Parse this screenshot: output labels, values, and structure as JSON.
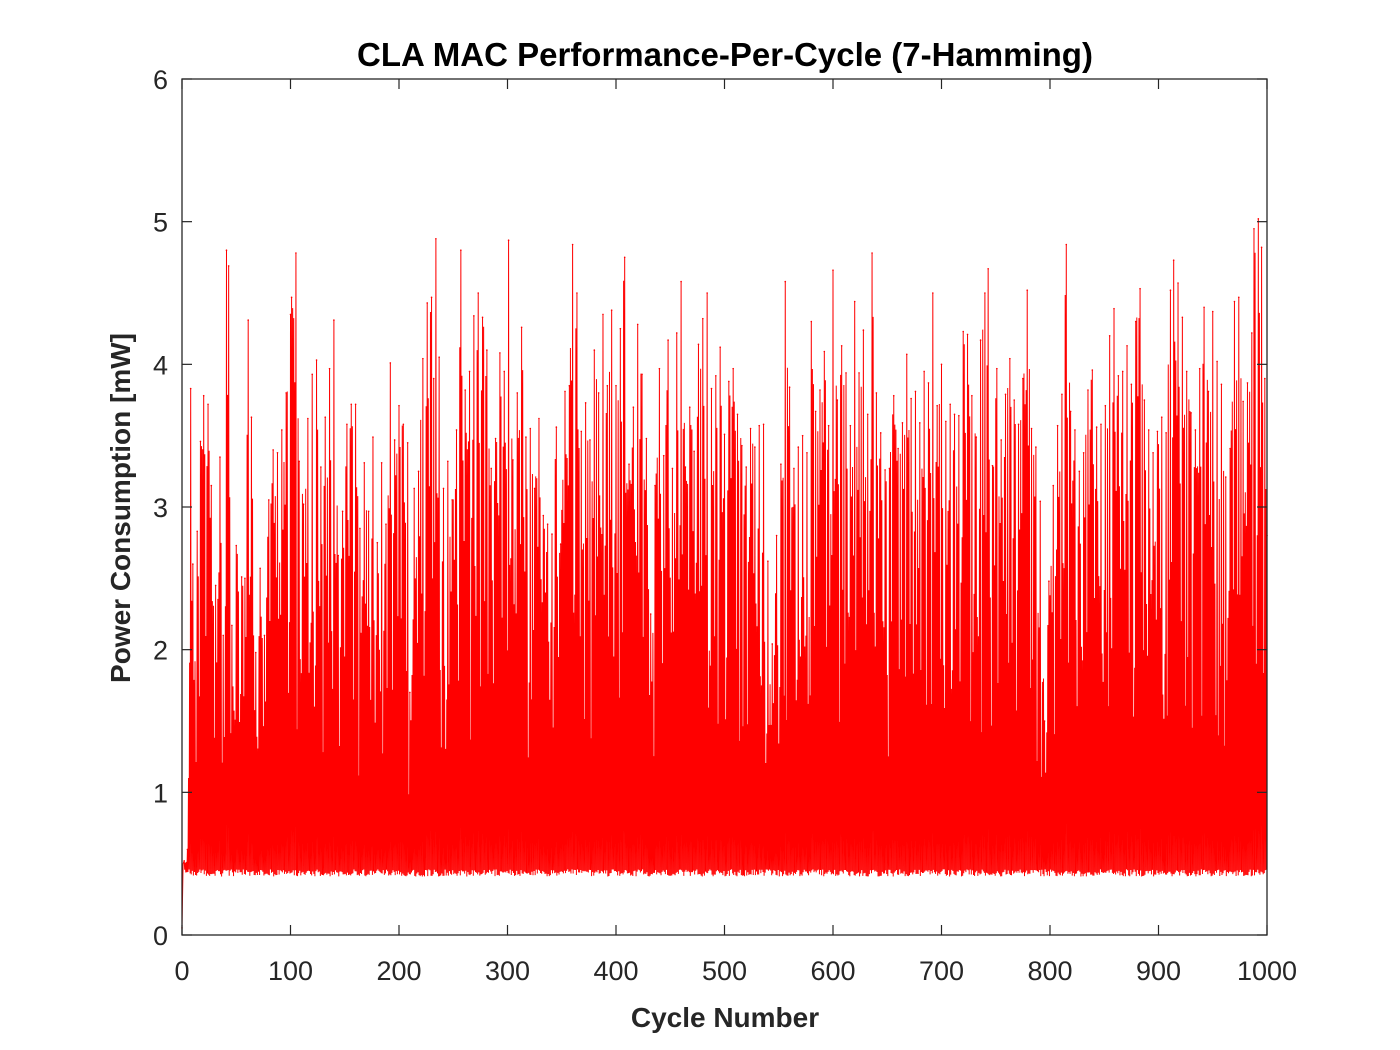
{
  "chart_data": {
    "type": "line",
    "title": "CLA MAC Performance-Per-Cycle (7-Hamming)",
    "xlabel": "Cycle Number",
    "ylabel": "Power Consumption [mW]",
    "xlim": [
      0,
      1000
    ],
    "ylim": [
      0,
      6
    ],
    "xticks": [
      "0",
      "100",
      "200",
      "300",
      "400",
      "500",
      "600",
      "700",
      "800",
      "900",
      "1000"
    ],
    "yticks": [
      "0",
      "1",
      "2",
      "3",
      "4",
      "5",
      "6"
    ],
    "grid": false,
    "legend": "none",
    "series": [
      {
        "color": "#ff0000",
        "description_values": {
          "baseline": 0.41,
          "start_value": 0.05,
          "typical_peak_range": [
            2.0,
            4.9
          ],
          "max_peak": 5.02,
          "max_peak_cycle": 992
        },
        "peaks": [
          [
            0,
            0.05
          ],
          [
            2,
            0.52
          ],
          [
            5,
            0.6
          ],
          [
            8,
            3.83
          ],
          [
            10,
            2.6
          ],
          [
            14,
            2.83
          ],
          [
            17,
            3.46
          ],
          [
            20,
            3.78
          ],
          [
            24,
            3.72
          ],
          [
            27,
            3.15
          ],
          [
            31,
            2.45
          ],
          [
            35,
            3.35
          ],
          [
            38,
            2.1
          ],
          [
            41,
            4.8
          ],
          [
            43,
            4.69
          ],
          [
            46,
            2.17
          ],
          [
            50,
            2.73
          ],
          [
            55,
            2.51
          ],
          [
            58,
            2.5
          ],
          [
            61,
            4.31
          ],
          [
            64,
            3.63
          ],
          [
            68,
            1.98
          ],
          [
            72,
            2.57
          ],
          [
            76,
            2.1
          ],
          [
            80,
            3.05
          ],
          [
            84,
            3.4
          ],
          [
            88,
            3.38
          ],
          [
            92,
            3.54
          ],
          [
            96,
            3.8
          ],
          [
            100,
            4.35
          ],
          [
            101,
            4.47
          ],
          [
            105,
            4.78
          ],
          [
            108,
            3.32
          ],
          [
            112,
            3.02
          ],
          [
            116,
            3.62
          ],
          [
            120,
            3.93
          ],
          [
            124,
            4.03
          ],
          [
            128,
            3.28
          ],
          [
            132,
            3.63
          ],
          [
            136,
            3.97
          ],
          [
            140,
            4.31
          ],
          [
            144,
            2.66
          ],
          [
            148,
            2.97
          ],
          [
            152,
            3.58
          ],
          [
            156,
            3.72
          ],
          [
            160,
            3.72
          ],
          [
            164,
            2.85
          ],
          [
            168,
            3.31
          ],
          [
            172,
            2.97
          ],
          [
            176,
            3.49
          ],
          [
            180,
            2.75
          ],
          [
            184,
            3.31
          ],
          [
            188,
            2.88
          ],
          [
            192,
            4.01
          ],
          [
            196,
            3.47
          ],
          [
            200,
            3.71
          ],
          [
            204,
            3.58
          ],
          [
            208,
            3.45
          ],
          [
            210,
            1.7
          ],
          [
            214,
            3.13
          ],
          [
            218,
            3.25
          ],
          [
            222,
            4.04
          ],
          [
            226,
            4.43
          ],
          [
            230,
            4.47
          ],
          [
            232,
            3.9
          ],
          [
            234,
            4.88
          ],
          [
            237,
            4.05
          ],
          [
            241,
            3.13
          ],
          [
            245,
            3.32
          ],
          [
            249,
            3.05
          ],
          [
            253,
            3.54
          ],
          [
            257,
            4.8
          ],
          [
            261,
            3.82
          ],
          [
            265,
            3.95
          ],
          [
            269,
            4.34
          ],
          [
            273,
            4.5
          ],
          [
            277,
            4.33
          ],
          [
            281,
            4.1
          ],
          [
            285,
            3.27
          ],
          [
            289,
            3.48
          ],
          [
            293,
            4.08
          ],
          [
            297,
            3.95
          ],
          [
            301,
            4.87
          ],
          [
            305,
            3.33
          ],
          [
            309,
            3.8
          ],
          [
            313,
            4.26
          ],
          [
            317,
            3.49
          ],
          [
            321,
            3.55
          ],
          [
            325,
            3.13
          ],
          [
            329,
            3.62
          ],
          [
            333,
            2.94
          ],
          [
            337,
            2.88
          ],
          [
            341,
            2.81
          ],
          [
            345,
            3.56
          ],
          [
            349,
            2.74
          ],
          [
            353,
            3.81
          ],
          [
            357,
            3.85
          ],
          [
            360,
            4.84
          ],
          [
            364,
            4.5
          ],
          [
            368,
            3.53
          ],
          [
            372,
            3.73
          ],
          [
            376,
            3.47
          ],
          [
            380,
            4.1
          ],
          [
            384,
            3.8
          ],
          [
            388,
            4.35
          ],
          [
            392,
            3.85
          ],
          [
            396,
            4.38
          ],
          [
            400,
            3.85
          ],
          [
            404,
            4.25
          ],
          [
            408,
            4.75
          ],
          [
            412,
            3.3
          ],
          [
            416,
            3.7
          ],
          [
            420,
            4.28
          ],
          [
            424,
            3.93
          ],
          [
            428,
            3.48
          ],
          [
            432,
            2.25
          ],
          [
            436,
            3.15
          ],
          [
            440,
            3.97
          ],
          [
            444,
            3.36
          ],
          [
            448,
            4.17
          ],
          [
            452,
            3.27
          ],
          [
            456,
            4.22
          ],
          [
            460,
            4.58
          ],
          [
            464,
            3.28
          ],
          [
            468,
            3.7
          ],
          [
            472,
            3.39
          ],
          [
            476,
            4.14
          ],
          [
            480,
            4.32
          ],
          [
            484,
            4.5
          ],
          [
            488,
            3.83
          ],
          [
            492,
            3.92
          ],
          [
            496,
            4.12
          ],
          [
            500,
            3.51
          ],
          [
            504,
            3.88
          ],
          [
            508,
            3.97
          ],
          [
            512,
            3.65
          ],
          [
            516,
            3.43
          ],
          [
            520,
            3.28
          ],
          [
            524,
            3.55
          ],
          [
            528,
            3.42
          ],
          [
            532,
            3.57
          ],
          [
            536,
            3.58
          ],
          [
            540,
            2.62
          ],
          [
            544,
            2.04
          ],
          [
            548,
            2.8
          ],
          [
            552,
            3.3
          ],
          [
            556,
            4.58
          ],
          [
            560,
            3.84
          ],
          [
            564,
            3.27
          ],
          [
            568,
            3.42
          ],
          [
            572,
            3.5
          ],
          [
            576,
            3.38
          ],
          [
            580,
            4.3
          ],
          [
            584,
            3.67
          ],
          [
            588,
            3.82
          ],
          [
            592,
            4.09
          ],
          [
            596,
            3.57
          ],
          [
            600,
            4.66
          ],
          [
            604,
            3.75
          ],
          [
            608,
            4.13
          ],
          [
            612,
            3.94
          ],
          [
            616,
            3.57
          ],
          [
            620,
            4.44
          ],
          [
            624,
            3.94
          ],
          [
            628,
            4.24
          ],
          [
            632,
            3.65
          ],
          [
            636,
            4.78
          ],
          [
            640,
            3.8
          ],
          [
            644,
            3.52
          ],
          [
            648,
            3.26
          ],
          [
            652,
            3.27
          ],
          [
            656,
            3.78
          ],
          [
            660,
            3.41
          ],
          [
            664,
            3.59
          ],
          [
            668,
            4.07
          ],
          [
            672,
            3.76
          ],
          [
            676,
            3.81
          ],
          [
            680,
            3.59
          ],
          [
            684,
            3.95
          ],
          [
            688,
            3.87
          ],
          [
            692,
            4.5
          ],
          [
            696,
            3.71
          ],
          [
            700,
            4.0
          ],
          [
            704,
            3.6
          ],
          [
            708,
            3.72
          ],
          [
            712,
            3.65
          ],
          [
            716,
            3.64
          ],
          [
            720,
            4.23
          ],
          [
            724,
            4.21
          ],
          [
            728,
            3.78
          ],
          [
            732,
            3.49
          ],
          [
            736,
            4.17
          ],
          [
            740,
            4.5
          ],
          [
            743,
            4.67
          ],
          [
            747,
            3.29
          ],
          [
            751,
            3.97
          ],
          [
            755,
            3.47
          ],
          [
            759,
            3.79
          ],
          [
            763,
            4.04
          ],
          [
            767,
            3.75
          ],
          [
            771,
            3.58
          ],
          [
            775,
            3.9
          ],
          [
            779,
            4.52
          ],
          [
            783,
            3.55
          ],
          [
            787,
            3.42
          ],
          [
            791,
            3.04
          ],
          [
            795,
            1.5
          ],
          [
            799,
            2.48
          ],
          [
            803,
            3.15
          ],
          [
            807,
            3.57
          ],
          [
            811,
            3.79
          ],
          [
            815,
            4.84
          ],
          [
            819,
            3.67
          ],
          [
            823,
            3.54
          ],
          [
            827,
            3.25
          ],
          [
            831,
            3.38
          ],
          [
            835,
            3.82
          ],
          [
            839,
            3.96
          ],
          [
            843,
            3.56
          ],
          [
            847,
            3.58
          ],
          [
            851,
            3.71
          ],
          [
            855,
            4.2
          ],
          [
            859,
            4.39
          ],
          [
            863,
            3.92
          ],
          [
            867,
            3.95
          ],
          [
            871,
            4.13
          ],
          [
            875,
            3.86
          ],
          [
            879,
            4.3
          ],
          [
            883,
            4.53
          ],
          [
            887,
            3.75
          ],
          [
            891,
            3.54
          ],
          [
            895,
            3.38
          ],
          [
            899,
            3.53
          ],
          [
            903,
            3.63
          ],
          [
            907,
            3.52
          ],
          [
            911,
            4.52
          ],
          [
            914,
            4.73
          ],
          [
            918,
            4.57
          ],
          [
            922,
            4.33
          ],
          [
            926,
            3.95
          ],
          [
            930,
            3.66
          ],
          [
            934,
            3.54
          ],
          [
            938,
            3.97
          ],
          [
            942,
            4.4
          ],
          [
            946,
            3.81
          ],
          [
            950,
            4.37
          ],
          [
            954,
            4.02
          ],
          [
            958,
            3.86
          ],
          [
            962,
            3.21
          ],
          [
            966,
            3.41
          ],
          [
            970,
            4.44
          ],
          [
            974,
            4.47
          ],
          [
            978,
            3.74
          ],
          [
            982,
            3.87
          ],
          [
            986,
            4.22
          ],
          [
            988,
            4.95
          ],
          [
            992,
            5.02
          ],
          [
            995,
            4.82
          ],
          [
            998,
            3.9
          ],
          [
            1000,
            2.8
          ]
        ]
      }
    ]
  }
}
